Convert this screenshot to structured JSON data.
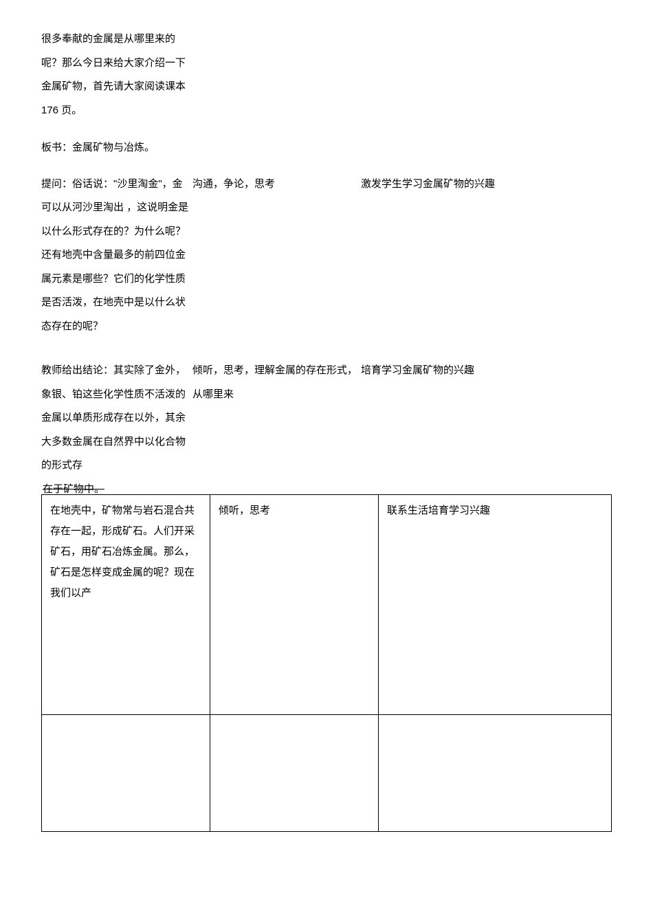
{
  "intro": {
    "col1": "很多奉献的金属是从哪里来的呢？那么今日来给大家介绍一下金属矿物，首先请大家阅读课本 176 页。"
  },
  "boardwork": "板书：金属矿物与冶炼。",
  "question": {
    "col1": "提问：俗话说：\"沙里淘金\"，金可以从河沙里淘出 ，这说明金是以什么形式存在的？为什么呢？还有地壳中含量最多的前四位金属元素是哪些？它们的化学性质是否活泼，在地壳中是以什么状态存在的呢？",
    "col2": "沟通，争论，思考",
    "col3": "激发学生学习金属矿物的兴趣"
  },
  "conclusion": {
    "col1_part1": "教师给出结论：其实除了金外，象银、铂这些化学性质不活泼的金属以单质形成存在以外，其余大多数金属在自然界中以化合物的形式存",
    "col1_struck": "在于矿物中。",
    "col2": "倾听，思考，理解金属的存在形式，从哪里来",
    "col3": "培育学习金属矿物的兴趣"
  },
  "table": {
    "row1": {
      "col1": "在地壳中，矿物常与岩石混合共存在一起，形成矿石。人们开采矿石，用矿石冶炼金属。那么，矿石是怎样变成金属的呢？现在我们以产",
      "col2": "倾听，思考",
      "col3": "联系生活培育学习兴趣"
    }
  }
}
